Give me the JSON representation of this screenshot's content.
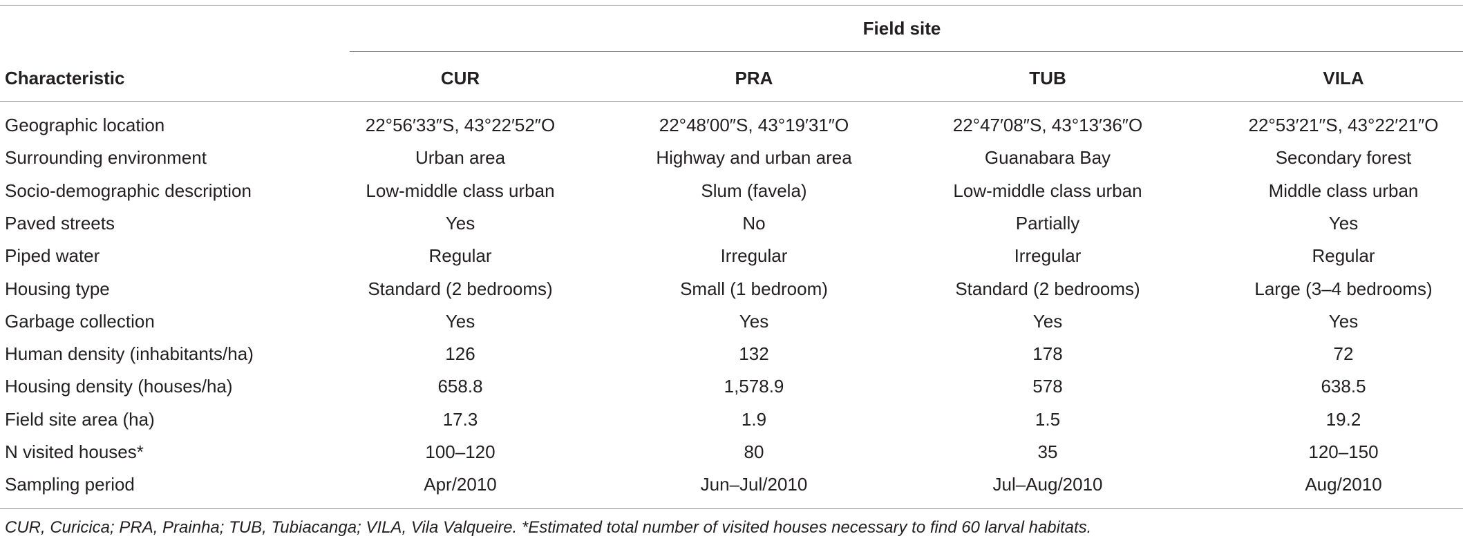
{
  "table": {
    "group_header": "Field site",
    "columns": [
      "Characteristic",
      "CUR",
      "PRA",
      "TUB",
      "VILA"
    ],
    "rows": [
      [
        "Geographic location",
        "22°56′33″S, 43°22′52″O",
        "22°48′00″S, 43°19′31″O",
        "22°47′08″S, 43°13′36″O",
        "22°53′21′′S, 43°22′21″O"
      ],
      [
        "Surrounding environment",
        "Urban area",
        "Highway and urban area",
        "Guanabara Bay",
        "Secondary forest"
      ],
      [
        "Socio-demographic description",
        "Low-middle class urban",
        "Slum (favela)",
        "Low-middle class urban",
        "Middle class urban"
      ],
      [
        "Paved streets",
        "Yes",
        "No",
        "Partially",
        "Yes"
      ],
      [
        "Piped water",
        "Regular",
        "Irregular",
        "Irregular",
        "Regular"
      ],
      [
        "Housing type",
        "Standard (2 bedrooms)",
        "Small (1 bedroom)",
        "Standard (2 bedrooms)",
        "Large (3–4 bedrooms)"
      ],
      [
        "Garbage collection",
        "Yes",
        "Yes",
        "Yes",
        "Yes"
      ],
      [
        "Human density (inhabitants/ha)",
        "126",
        "132",
        "178",
        "72"
      ],
      [
        "Housing density (houses/ha)",
        "658.8",
        "1,578.9",
        "578",
        "638.5"
      ],
      [
        "Field site area (ha)",
        "17.3",
        "1.9",
        "1.5",
        "19.2"
      ],
      [
        "N visited houses*",
        "100–120",
        "80",
        "35",
        "120–150"
      ],
      [
        "Sampling period",
        "Apr/2010",
        "Jun–Jul/2010",
        "Jul–Aug/2010",
        "Aug/2010"
      ]
    ],
    "footnote": "CUR, Curicica; PRA, Prainha; TUB, Tubiacanga; VILA, Vila Valqueire. *Estimated total number of visited houses necessary to find 60 larval habitats."
  }
}
